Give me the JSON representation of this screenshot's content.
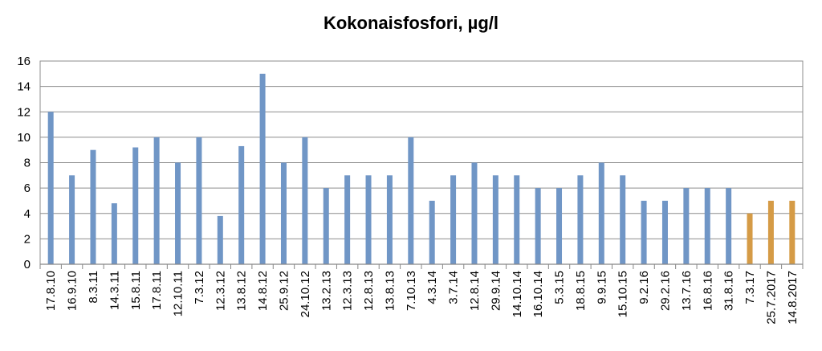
{
  "chart_data": {
    "type": "bar",
    "title": "Kokonaisfosfori, µg/l",
    "xlabel": "",
    "ylabel": "",
    "ylim": [
      0,
      16
    ],
    "yticks": [
      0,
      2,
      4,
      6,
      8,
      10,
      12,
      14,
      16
    ],
    "grid": true,
    "legend": "none",
    "categories": [
      "17.8.10",
      "16.9.10",
      "8.3.11",
      "14.3.11",
      "15.8.11",
      "17.8.11",
      "12.10.11",
      "7.3.12",
      "12.3.12",
      "13.8.12",
      "14.8.12",
      "25.9.12",
      "24.10.12",
      "13.2.13",
      "12.3.13",
      "12.8.13",
      "13.8.13",
      "7.10.13",
      "4.3.14",
      "3.7.14",
      "12.8.14",
      "29.9.14",
      "14.10.14",
      "16.10.14",
      "5.3.15",
      "18.8.15",
      "9.9.15",
      "15.10.15",
      "9.2.16",
      "29.2.16",
      "13.7.16",
      "16.8.16",
      "31.8.16",
      "7.3.17",
      "25.7.2017",
      "14.8.2017"
    ],
    "values": [
      12,
      7,
      9,
      4.8,
      9.2,
      10,
      8,
      10,
      3.8,
      9.3,
      15,
      8,
      10,
      6,
      7,
      7,
      7,
      10,
      5,
      7,
      8,
      7,
      7,
      6,
      6,
      7,
      8,
      7,
      5,
      5,
      6,
      6,
      6,
      4,
      5,
      5
    ],
    "bar_colors": [
      "#7096c6",
      "#7096c6",
      "#7096c6",
      "#7096c6",
      "#7096c6",
      "#7096c6",
      "#7096c6",
      "#7096c6",
      "#7096c6",
      "#7096c6",
      "#7096c6",
      "#7096c6",
      "#7096c6",
      "#7096c6",
      "#7096c6",
      "#7096c6",
      "#7096c6",
      "#7096c6",
      "#7096c6",
      "#7096c6",
      "#7096c6",
      "#7096c6",
      "#7096c6",
      "#7096c6",
      "#7096c6",
      "#7096c6",
      "#7096c6",
      "#7096c6",
      "#7096c6",
      "#7096c6",
      "#7096c6",
      "#7096c6",
      "#7096c6",
      "#d59b46",
      "#d59b46",
      "#d59b46"
    ],
    "gridline_color": "#8e8e8e",
    "axis_color": "#868686"
  }
}
